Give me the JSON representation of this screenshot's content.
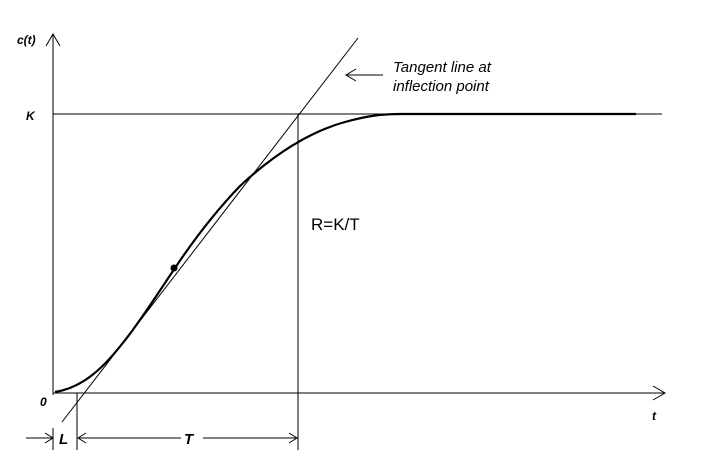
{
  "diagram": {
    "y_axis_label": "c(t)",
    "x_axis_label": "t",
    "origin_label": "0",
    "k_label": "K",
    "annotation_line1": "Tangent line at",
    "annotation_line2": "inflection point",
    "rate_label": "R=K/T",
    "l_label": "L",
    "t_label": "T"
  }
}
